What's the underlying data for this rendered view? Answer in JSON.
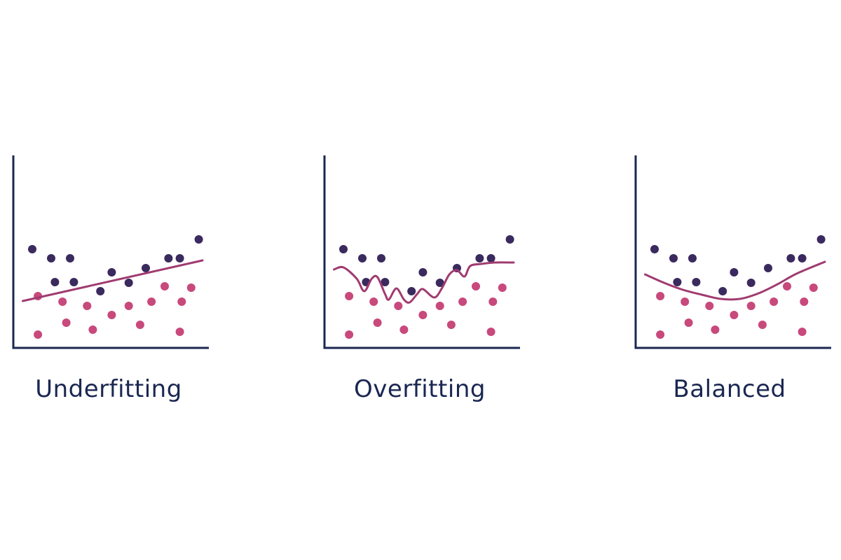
{
  "colors": {
    "background": "#ffffff",
    "axis": "#1a2752",
    "class_a_points": "#3a2a5e",
    "class_b_points": "#c8497c",
    "fit_curve": "#a03b70",
    "label_text": "#1a2752"
  },
  "panels": [
    {
      "label": "Underfitting",
      "fit": "linear",
      "fit_curve": [
        [
          0.5,
          430
        ],
        [
          3,
          400
        ],
        [
          10,
          372
        ]
      ]
    },
    {
      "label": "Overfitting",
      "fit": "wiggly",
      "fit_curve": [
        [
          0.5,
          385
        ],
        [
          1,
          382
        ],
        [
          1.7,
          398
        ],
        [
          2.1,
          416
        ],
        [
          2.5,
          398
        ],
        [
          2.8,
          396
        ],
        [
          3.2,
          420
        ],
        [
          3.4,
          428
        ],
        [
          3.8,
          412
        ],
        [
          4.2,
          428
        ],
        [
          4.5,
          432
        ],
        [
          4.9,
          420
        ],
        [
          5.2,
          413
        ],
        [
          5.8,
          425
        ],
        [
          6.2,
          412
        ],
        [
          6.6,
          392
        ],
        [
          7,
          386
        ],
        [
          7.4,
          395
        ],
        [
          7.7,
          380
        ],
        [
          8.3,
          377
        ],
        [
          9,
          375
        ],
        [
          10,
          375
        ]
      ]
    },
    {
      "label": "Balanced",
      "fit": "quadratic",
      "fit_curve": [
        [
          0.5,
          392
        ],
        [
          1.5,
          404
        ],
        [
          2.5,
          414
        ],
        [
          3.5,
          421
        ],
        [
          4.5,
          427
        ],
        [
          5.5,
          427
        ],
        [
          6.5,
          419
        ],
        [
          7.5,
          406
        ],
        [
          8.5,
          391
        ],
        [
          10,
          374
        ]
      ]
    }
  ],
  "class_a_points": [
    [
      1,
      356
    ],
    [
      2,
      369
    ],
    [
      3,
      369
    ],
    [
      3.2,
      403
    ],
    [
      2.2,
      403
    ],
    [
      4.6,
      416
    ],
    [
      5.2,
      389
    ],
    [
      6.1,
      404
    ],
    [
      7,
      383
    ],
    [
      8.2,
      369
    ],
    [
      8.8,
      369
    ],
    [
      9.8,
      342
    ]
  ],
  "class_b_points": [
    [
      1.3,
      423
    ],
    [
      1.3,
      478
    ],
    [
      2.6,
      431
    ],
    [
      2.8,
      461
    ],
    [
      3.9,
      437
    ],
    [
      4.2,
      471
    ],
    [
      5.2,
      450
    ],
    [
      6.1,
      437
    ],
    [
      6.7,
      464
    ],
    [
      7.3,
      431
    ],
    [
      8,
      409
    ],
    [
      8.8,
      474
    ],
    [
      8.9,
      431
    ],
    [
      9.4,
      411
    ]
  ]
}
